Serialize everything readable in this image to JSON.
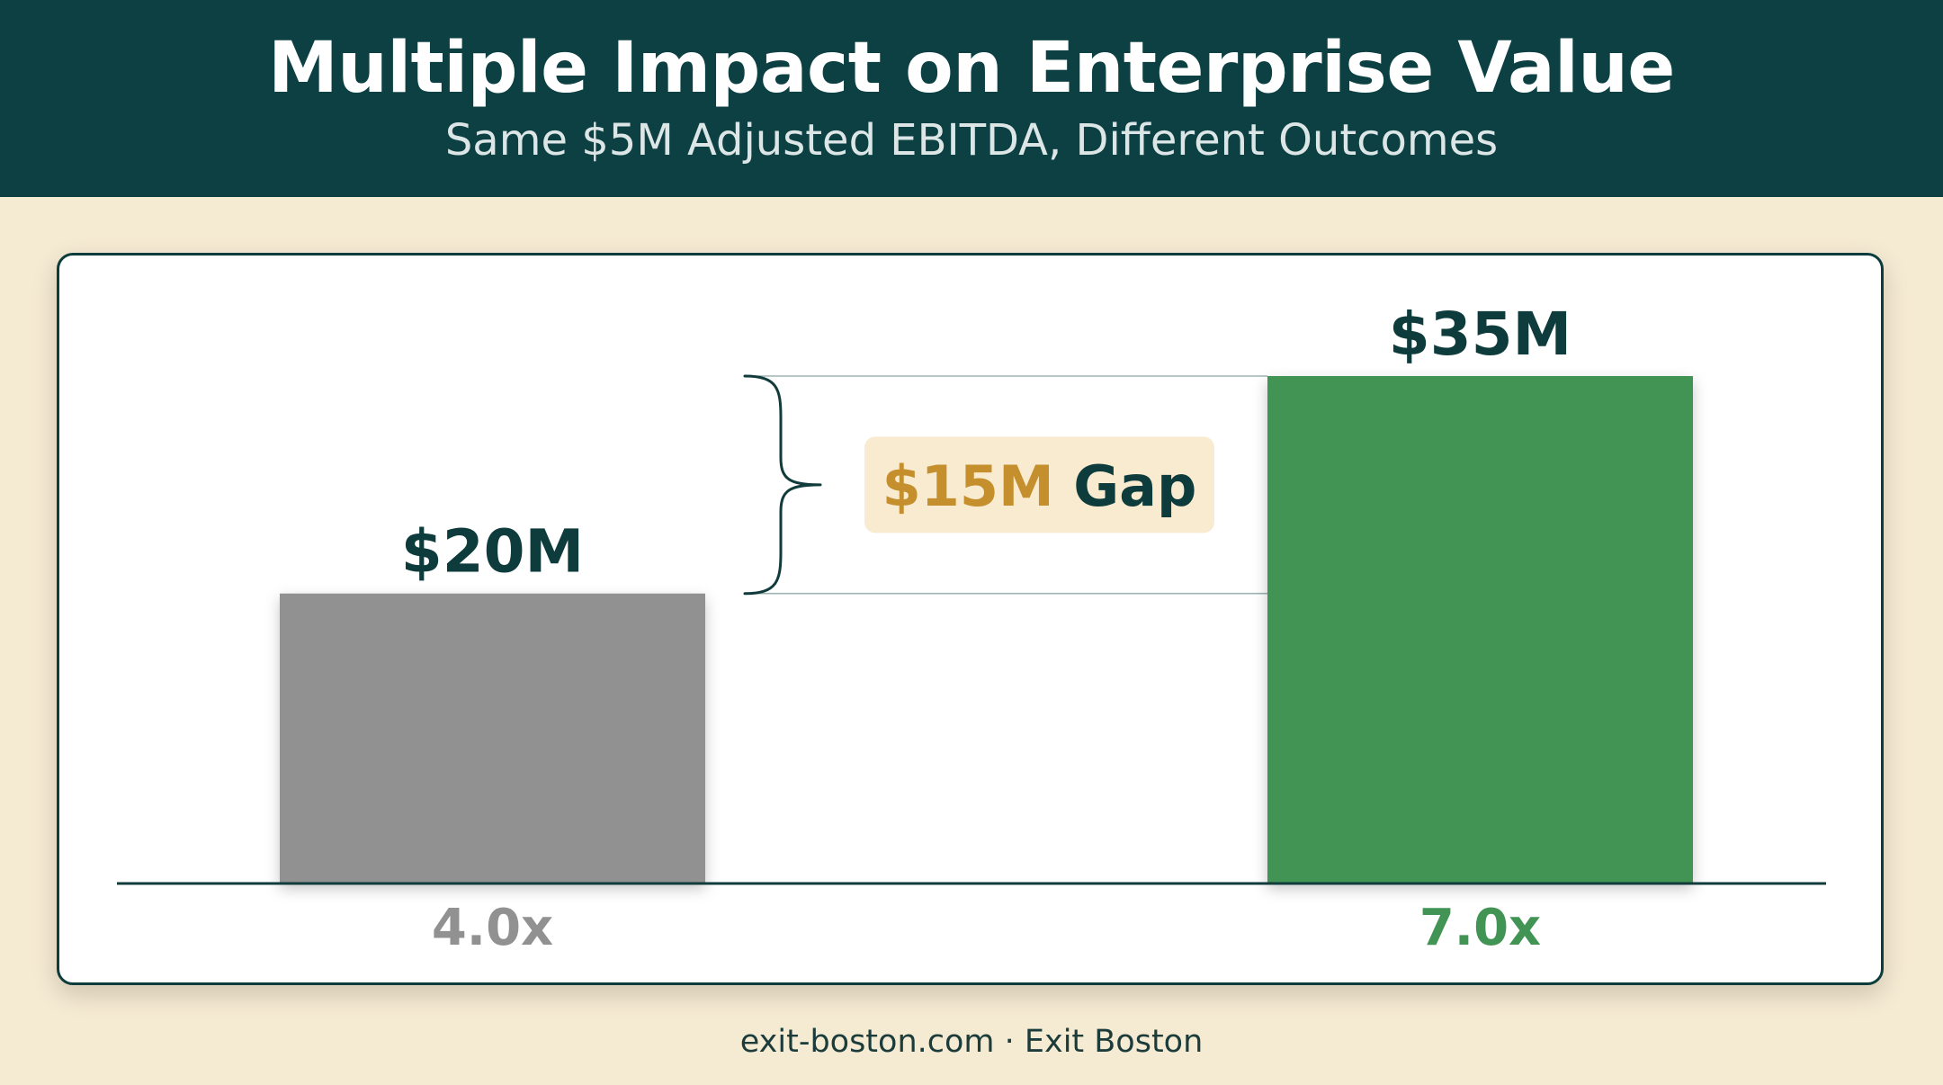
{
  "header": {
    "title": "Multiple Impact on Enterprise Value",
    "subtitle": "Same $5M Adjusted EBITDA, Different Outcomes"
  },
  "footer": {
    "text": "exit-boston.com · Exit Boston"
  },
  "colors": {
    "header_bg": "#0c4043",
    "page_bg": "#f5ead2",
    "bar_low": "#919191",
    "bar_high": "#429455",
    "value_text": "#0e3c3c",
    "gap_accent": "#c48f2c",
    "gap_badge_bg": "#f8ebd0"
  },
  "chart_data": {
    "type": "bar",
    "categories": [
      "4.0x",
      "7.0x"
    ],
    "values": [
      20,
      35
    ],
    "value_labels": [
      "$20M",
      "$35M"
    ],
    "unit": "$M",
    "ylim": [
      0,
      35
    ],
    "grid": false,
    "annotation": {
      "amount": "$15M",
      "label": "Gap",
      "value": 15
    }
  }
}
